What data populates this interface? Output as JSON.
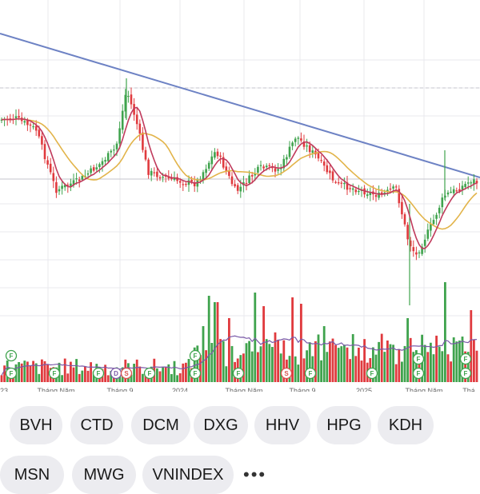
{
  "colors": {
    "up": "#3fa34d",
    "down": "#e03a3e",
    "ma_short": "#c03a5c",
    "ma_long": "#e2b44a",
    "trendline": "#6d82c4",
    "volume_ma": "#7a5aa8",
    "grid": "#e9e9ee",
    "ref_line": "#c6c6cc"
  },
  "chart_data": {
    "type": "candlestick",
    "x_tick_labels": [
      "23",
      "Tháng Năm",
      "Tháng 9",
      "2024",
      "Tháng Năm",
      "Tháng 9",
      "2025",
      "Tháng Năm",
      "Thá"
    ],
    "trendline": "descending resistance line",
    "moving_averages": [
      "short",
      "long"
    ],
    "volume_panel": true,
    "event_markers": [
      "F",
      "F",
      "F",
      "F",
      "D",
      "S",
      "F",
      "F",
      "F",
      "F",
      "S",
      "F",
      "F",
      "F",
      "F",
      "F",
      "F"
    ]
  },
  "symbols": {
    "row1": [
      "BVH",
      "CTD",
      "DCM",
      "DXG",
      "HHV",
      "HPG",
      "KDH"
    ],
    "row2": [
      "MSN",
      "MWG",
      "VNINDEX"
    ],
    "more_label": "•••"
  }
}
